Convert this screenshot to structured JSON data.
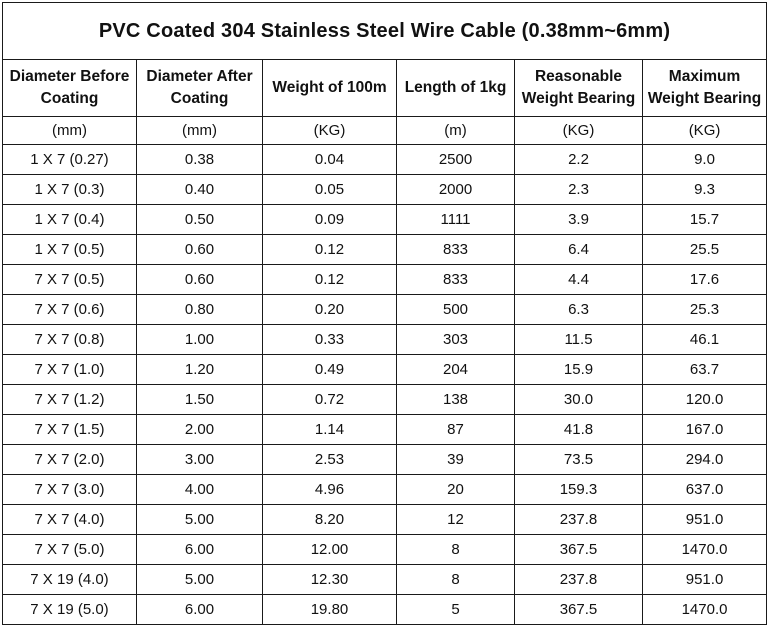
{
  "title": "PVC Coated 304 Stainless Steel Wire Cable (0.38mm~6mm)",
  "headers": [
    "Diameter Before Coating",
    "Diameter After Coating",
    "Weight of 100m",
    "Length of 1kg",
    "Reasonable Weight Bearing",
    "Maximum Weight Bearing"
  ],
  "units": [
    "(mm)",
    "(mm)",
    "(KG)",
    "(m)",
    "(KG)",
    "(KG)"
  ],
  "rows": [
    [
      "1 X 7 (0.27)",
      "0.38",
      "0.04",
      "2500",
      "2.2",
      "9.0"
    ],
    [
      "1 X 7 (0.3)",
      "0.40",
      "0.05",
      "2000",
      "2.3",
      "9.3"
    ],
    [
      "1 X 7 (0.4)",
      "0.50",
      "0.09",
      "1111",
      "3.9",
      "15.7"
    ],
    [
      "1 X 7 (0.5)",
      "0.60",
      "0.12",
      "833",
      "6.4",
      "25.5"
    ],
    [
      "7 X 7 (0.5)",
      "0.60",
      "0.12",
      "833",
      "4.4",
      "17.6"
    ],
    [
      "7 X 7 (0.6)",
      "0.80",
      "0.20",
      "500",
      "6.3",
      "25.3"
    ],
    [
      "7 X 7 (0.8)",
      "1.00",
      "0.33",
      "303",
      "11.5",
      "46.1"
    ],
    [
      "7 X 7 (1.0)",
      "1.20",
      "0.49",
      "204",
      "15.9",
      "63.7"
    ],
    [
      "7 X 7 (1.2)",
      "1.50",
      "0.72",
      "138",
      "30.0",
      "120.0"
    ],
    [
      "7 X 7 (1.5)",
      "2.00",
      "1.14",
      "87",
      "41.8",
      "167.0"
    ],
    [
      "7 X 7 (2.0)",
      "3.00",
      "2.53",
      "39",
      "73.5",
      "294.0"
    ],
    [
      "7 X 7 (3.0)",
      "4.00",
      "4.96",
      "20",
      "159.3",
      "637.0"
    ],
    [
      "7 X 7 (4.0)",
      "5.00",
      "8.20",
      "12",
      "237.8",
      "951.0"
    ],
    [
      "7 X 7 (5.0)",
      "6.00",
      "12.00",
      "8",
      "367.5",
      "1470.0"
    ],
    [
      "7 X 19 (4.0)",
      "5.00",
      "12.30",
      "8",
      "237.8",
      "951.0"
    ],
    [
      "7 X 19 (5.0)",
      "6.00",
      "19.80",
      "5",
      "367.5",
      "1470.0"
    ]
  ]
}
